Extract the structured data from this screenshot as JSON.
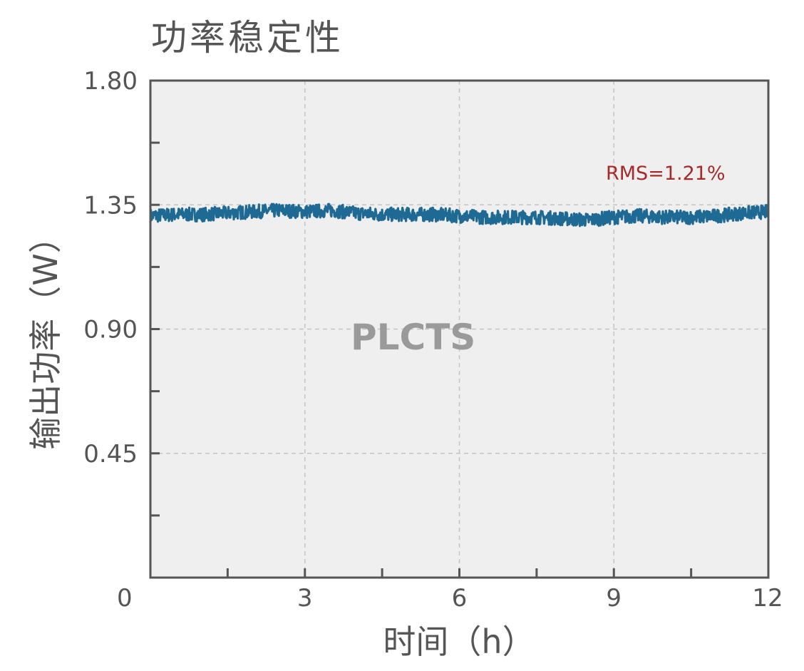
{
  "chart_data": {
    "type": "line",
    "title": "功率稳定性",
    "xlabel": "时间（h）",
    "ylabel": "输出功率（W）",
    "xlim": [
      0,
      12
    ],
    "ylim": [
      0,
      1.8
    ],
    "x_ticks": [
      0,
      3,
      6,
      9,
      12
    ],
    "x_tick_labels": [
      "0",
      "3",
      "6",
      "9",
      "12"
    ],
    "y_ticks": [
      0.45,
      0.9,
      1.35,
      1.8
    ],
    "y_tick_labels": [
      "0.45",
      "0.90",
      "1.35",
      "1.80"
    ],
    "grid": true,
    "series": [
      {
        "x": [
          0,
          0.5,
          1,
          1.5,
          2,
          2.5,
          3,
          3.5,
          4,
          4.5,
          5,
          5.5,
          6,
          6.5,
          7,
          7.5,
          8,
          8.5,
          9,
          9.5,
          10,
          10.5,
          11,
          11.5,
          12
        ],
        "y": [
          1.31,
          1.315,
          1.315,
          1.32,
          1.325,
          1.33,
          1.325,
          1.33,
          1.32,
          1.315,
          1.315,
          1.315,
          1.31,
          1.305,
          1.305,
          1.305,
          1.3,
          1.295,
          1.305,
          1.31,
          1.305,
          1.305,
          1.31,
          1.32,
          1.325
        ],
        "band": 0.025,
        "color": "#1f6a94"
      }
    ],
    "annotation": "RMS=1.21%"
  },
  "watermark": "PLCTS"
}
